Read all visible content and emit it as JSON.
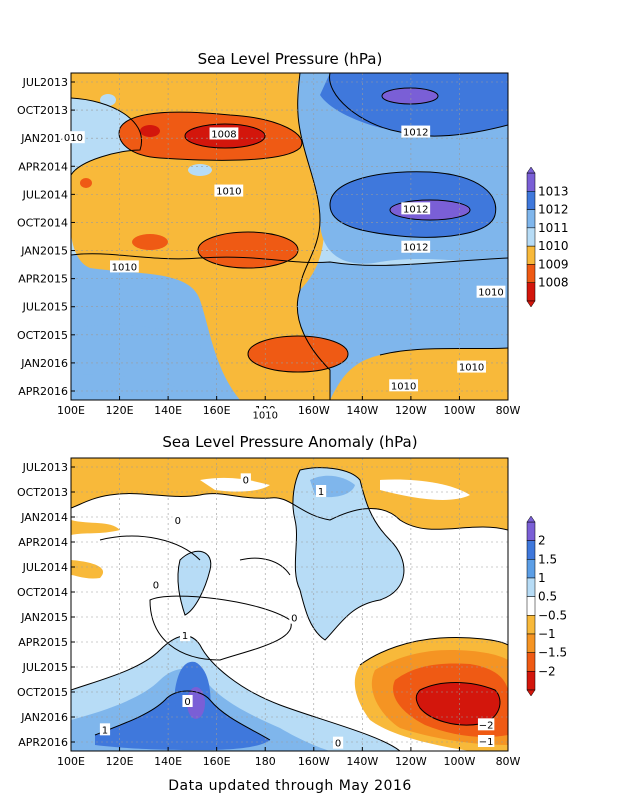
{
  "footer": "Data updated through May 2016",
  "chart_data": [
    {
      "type": "heatmap",
      "title": "Sea Level Pressure (hPa)",
      "x_ticks": [
        "100E",
        "120E",
        "140E",
        "160E",
        "180",
        "160W",
        "140W",
        "120W",
        "100W",
        "80W"
      ],
      "y_ticks": [
        "JUL2013",
        "OCT2013",
        "JAN2014",
        "APR2014",
        "JUL2014",
        "OCT2014",
        "JAN2015",
        "APR2015",
        "JUL2015",
        "OCT2015",
        "JAN2016",
        "APR2016"
      ],
      "legend": {
        "labels": [
          "1013",
          "1012",
          "1011",
          "1010",
          "1009",
          "1008"
        ],
        "colors": [
          "#7a5fd6",
          "#3f78dc",
          "#7fb6ec",
          "#b7dcf6",
          "#f8b93a",
          "#ef5a14",
          "#d3160c"
        ]
      },
      "contour_labels": [
        {
          "text": "010",
          "lon": 101,
          "month": 6
        },
        {
          "text": "1008",
          "lon": 163,
          "month": 5.6
        },
        {
          "text": "1010",
          "lon": 165,
          "month": 11.7
        },
        {
          "text": "1012",
          "lon": 242,
          "month": 5.4
        },
        {
          "text": "1012",
          "lon": 242,
          "month": 13.6
        },
        {
          "text": "1012",
          "lon": 242,
          "month": 17.7
        },
        {
          "text": "1010",
          "lon": 122,
          "month": 19.8
        },
        {
          "text": "1010",
          "lon": 273,
          "month": 22.5
        },
        {
          "text": "1010",
          "lon": 265,
          "month": 30.5
        },
        {
          "text": "1010",
          "lon": 237,
          "month": 32.5
        },
        {
          "text": "1010",
          "lon": 180,
          "month": 35.6
        }
      ],
      "regions": [
        {
          "level": "1010",
          "lon": 120,
          "month": 26,
          "rlon": 25,
          "rmonth": 6
        },
        {
          "level": "1010",
          "lon": 235,
          "month": 31,
          "rlon": 40,
          "rmonth": 5
        },
        {
          "level": "1011",
          "lon": 262,
          "month": 11,
          "rlon": 48,
          "rmonth": 12
        },
        {
          "level": "1012",
          "lon": 258,
          "month": 3,
          "rlon": 40,
          "rmonth": 4.5
        },
        {
          "level": "1012",
          "lon": 260,
          "month": 14.5,
          "rlon": 35,
          "rmonth": 4
        },
        {
          "level": "1013",
          "lon": 250,
          "month": 2.5,
          "rlon": 10,
          "rmonth": 1.2
        },
        {
          "level": "1013",
          "lon": 240,
          "month": 14.5,
          "rlon": 14,
          "rmonth": 1.6
        },
        {
          "level": "1009",
          "lon": 148,
          "month": 5.7,
          "rlon": 22,
          "rmonth": 3
        },
        {
          "level": "1009",
          "lon": 165,
          "month": 19.5,
          "rlon": 17,
          "rmonth": 3
        },
        {
          "level": "1009",
          "lon": 182,
          "month": 31.5,
          "rlon": 19,
          "rmonth": 3
        },
        {
          "level": "1009",
          "lon": 136,
          "month": 18,
          "rlon": 5,
          "rmonth": 1.2
        },
        {
          "level": "1008",
          "lon": 165,
          "month": 5.6,
          "rlon": 12,
          "rmonth": 1.8
        },
        {
          "level": "1008",
          "lon": 132,
          "month": 5.5,
          "rlon": 3,
          "rmonth": 0.8
        }
      ]
    },
    {
      "type": "heatmap",
      "title": "Sea Level Pressure Anomaly (hPa)",
      "x_ticks": [
        "100E",
        "120E",
        "140E",
        "160E",
        "180",
        "160W",
        "140W",
        "120W",
        "100W",
        "80W"
      ],
      "y_ticks": [
        "JUL2013",
        "OCT2013",
        "JAN2014",
        "APR2014",
        "JUL2014",
        "OCT2014",
        "JAN2015",
        "APR2015",
        "JUL2015",
        "OCT2015",
        "JAN2016",
        "APR2016"
      ],
      "legend": {
        "labels": [
          "2",
          "1.5",
          "1",
          "0.5",
          "−0.5",
          "−1",
          "−1.5",
          "−2"
        ],
        "colors": [
          "#7a5fd6",
          "#3f78dc",
          "#5b9ee6",
          "#b7dcf6",
          "#ffffff",
          "#f8b93a",
          "#f59423",
          "#ef5a14",
          "#d3160c"
        ]
      },
      "contour_labels": [
        {
          "text": "1",
          "lon": 203,
          "month": 3
        },
        {
          "text": "0",
          "lon": 172,
          "month": 1.6
        },
        {
          "text": "0",
          "lon": 144,
          "month": 6.5
        },
        {
          "text": "0",
          "lon": 135,
          "month": 14.2
        },
        {
          "text": "0",
          "lon": 192,
          "month": 18.2
        },
        {
          "text": "1",
          "lon": 147,
          "month": 20.3
        },
        {
          "text": "0",
          "lon": 148,
          "month": 28.2
        },
        {
          "text": "1",
          "lon": 114,
          "month": 31.6
        },
        {
          "text": "0",
          "lon": 210,
          "month": 33.2
        },
        {
          "text": "−2",
          "lon": 271,
          "month": 31
        },
        {
          "text": "−1",
          "lon": 271,
          "month": 33
        }
      ],
      "regions": [
        {
          "level": "0.5",
          "lon": 205,
          "month": 12,
          "rlon": 17,
          "rmonth": 9
        },
        {
          "level": "0.5",
          "lon": 148,
          "month": 31,
          "rlon": 35,
          "rmonth": 6
        },
        {
          "level": "0.5",
          "lon": 115,
          "month": 32,
          "rlon": 20,
          "rmonth": 3
        },
        {
          "level": "0.5",
          "lon": 205,
          "month": 3.5,
          "rlon": 12,
          "rmonth": 2.5
        },
        {
          "level": "1",
          "lon": 148,
          "month": 30,
          "rlon": 15,
          "rmonth": 6
        },
        {
          "level": "1",
          "lon": 205,
          "month": 3.2,
          "rlon": 6,
          "rmonth": 1.5
        },
        {
          "level": "1.5",
          "lon": 148,
          "month": 29.5,
          "rlon": 7,
          "rmonth": 4
        },
        {
          "level": "2",
          "lon": 148,
          "month": 29.8,
          "rlon": 3,
          "rmonth": 1.6
        },
        {
          "level": "−0.5",
          "lon": 272,
          "month": 29,
          "rlon": 25,
          "rmonth": 6
        },
        {
          "level": "−1",
          "lon": 272,
          "month": 29,
          "rlon": 20,
          "rmonth": 5
        },
        {
          "level": "−1.5",
          "lon": 272,
          "month": 29,
          "rlon": 15,
          "rmonth": 4
        },
        {
          "level": "−2",
          "lon": 274,
          "month": 29.5,
          "rlon": 10,
          "rmonth": 2.5
        }
      ]
    }
  ]
}
